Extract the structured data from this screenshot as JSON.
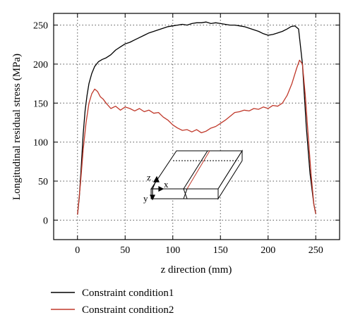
{
  "chart_data": {
    "type": "line",
    "xlabel": "z direction (mm)",
    "ylabel": "Longitudinal residual stress (MPa)",
    "xlim": [
      -25,
      275
    ],
    "ylim": [
      -25,
      265
    ],
    "xticks": [
      0,
      50,
      100,
      150,
      200,
      250
    ],
    "yticks": [
      0,
      50,
      100,
      150,
      200,
      250
    ],
    "grid": "dotted",
    "legend_position": "bottom",
    "series": [
      {
        "name": "Constraint condition1",
        "color": "#000000",
        "x": [
          0,
          2,
          4,
          6,
          8,
          10,
          12,
          15,
          18,
          22,
          26,
          30,
          35,
          40,
          45,
          50,
          55,
          60,
          65,
          70,
          75,
          80,
          85,
          90,
          95,
          100,
          105,
          110,
          115,
          120,
          125,
          130,
          135,
          140,
          145,
          150,
          155,
          160,
          165,
          170,
          175,
          180,
          185,
          190,
          195,
          200,
          205,
          210,
          215,
          220,
          224,
          228,
          232,
          236,
          240,
          244,
          248,
          250
        ],
        "y": [
          7,
          30,
          70,
          110,
          140,
          160,
          175,
          188,
          197,
          203,
          206,
          208,
          212,
          218,
          222,
          226,
          228,
          231,
          234,
          237,
          240,
          242,
          244,
          246,
          248,
          249,
          250,
          251,
          250,
          252,
          253,
          253,
          254,
          252,
          253,
          252,
          251,
          250,
          250,
          249,
          248,
          246,
          244,
          242,
          239,
          237,
          238,
          240,
          242,
          245,
          248,
          249,
          245,
          200,
          120,
          60,
          20,
          8
        ]
      },
      {
        "name": "Constraint condition2",
        "color": "#c0392b",
        "x": [
          0,
          3,
          6,
          9,
          12,
          15,
          18,
          21,
          24,
          27,
          30,
          35,
          40,
          45,
          50,
          55,
          60,
          65,
          70,
          75,
          80,
          85,
          90,
          95,
          100,
          105,
          110,
          115,
          120,
          125,
          130,
          135,
          140,
          145,
          150,
          155,
          160,
          165,
          170,
          175,
          180,
          185,
          190,
          195,
          200,
          205,
          210,
          215,
          220,
          225,
          230,
          233,
          236,
          239,
          242,
          245,
          248,
          250
        ],
        "y": [
          7,
          45,
          90,
          125,
          150,
          162,
          168,
          165,
          158,
          155,
          150,
          143,
          146,
          141,
          145,
          143,
          140,
          143,
          139,
          141,
          137,
          138,
          132,
          128,
          122,
          118,
          115,
          116,
          113,
          116,
          112,
          114,
          118,
          120,
          124,
          128,
          133,
          138,
          139,
          141,
          140,
          143,
          142,
          145,
          143,
          147,
          146,
          150,
          160,
          175,
          195,
          205,
          200,
          160,
          110,
          60,
          20,
          8
        ]
      }
    ]
  },
  "inset": {
    "labels": {
      "z": "z",
      "x": "x",
      "y": "y"
    }
  }
}
